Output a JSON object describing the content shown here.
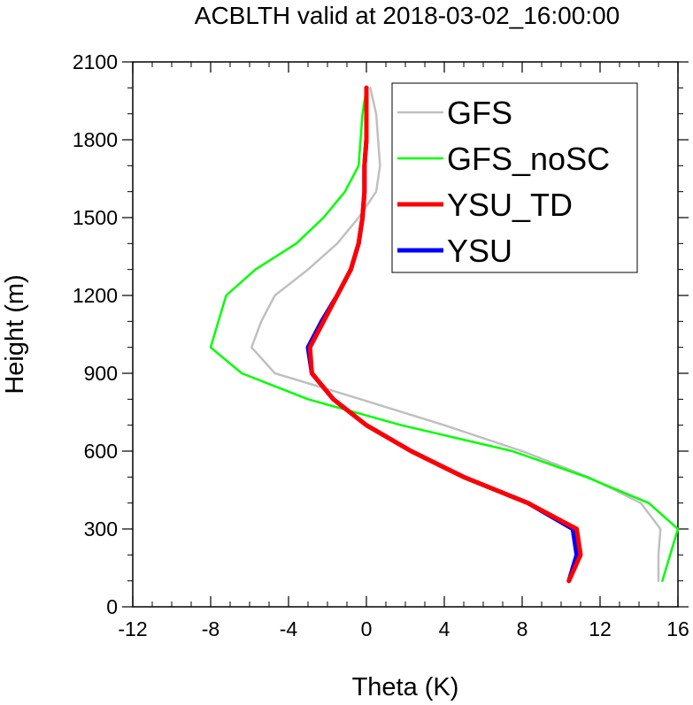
{
  "chart_data": {
    "type": "line",
    "title": "ACBLTH valid at 2018-03-02_16:00:00",
    "xlabel": "Theta (K)",
    "ylabel": "Height (m)",
    "xlim": [
      -12,
      16
    ],
    "ylim": [
      0,
      2100
    ],
    "x_ticks": [
      -12,
      -8,
      -4,
      0,
      4,
      8,
      12,
      16
    ],
    "x_tick_labels": [
      "-12",
      "-8",
      "-4",
      "0",
      "4",
      "8",
      "12",
      "16"
    ],
    "y_ticks": [
      0,
      300,
      600,
      900,
      1200,
      1500,
      1800,
      2100
    ],
    "y_tick_labels": [
      "0",
      "300",
      "600",
      "900",
      "1200",
      "1500",
      "1800",
      "2100"
    ],
    "legend_position": "top-right",
    "series": [
      {
        "name": "GFS",
        "color": "#c0c0c0",
        "line_width": "thin",
        "points": [
          [
            15.0,
            100
          ],
          [
            15.0,
            200
          ],
          [
            15.1,
            300
          ],
          [
            14.1,
            400
          ],
          [
            11.4,
            500
          ],
          [
            8.0,
            600
          ],
          [
            4.0,
            700
          ],
          [
            -0.3,
            800
          ],
          [
            -4.7,
            900
          ],
          [
            -5.9,
            1000
          ],
          [
            -5.4,
            1100
          ],
          [
            -4.7,
            1200
          ],
          [
            -3.0,
            1300
          ],
          [
            -1.5,
            1400
          ],
          [
            -0.4,
            1500
          ],
          [
            0.5,
            1600
          ],
          [
            0.7,
            1700
          ],
          [
            0.6,
            1800
          ],
          [
            0.5,
            1900
          ],
          [
            0.2,
            2000
          ]
        ]
      },
      {
        "name": "GFS_noSC",
        "color": "#00ff00",
        "line_width": "thin",
        "points": [
          [
            15.2,
            100
          ],
          [
            15.6,
            200
          ],
          [
            16.0,
            300
          ],
          [
            14.5,
            400
          ],
          [
            11.3,
            500
          ],
          [
            7.5,
            600
          ],
          [
            1.8,
            700
          ],
          [
            -3.0,
            800
          ],
          [
            -6.4,
            900
          ],
          [
            -8.0,
            1000
          ],
          [
            -7.6,
            1100
          ],
          [
            -7.2,
            1200
          ],
          [
            -5.7,
            1300
          ],
          [
            -3.6,
            1400
          ],
          [
            -2.2,
            1500
          ],
          [
            -1.1,
            1600
          ],
          [
            -0.4,
            1700
          ],
          [
            -0.3,
            1800
          ],
          [
            -0.2,
            1900
          ],
          [
            0.0,
            2000
          ]
        ]
      },
      {
        "name": "YSU_TD",
        "color": "#ff0000",
        "line_width": "thick",
        "points": [
          [
            10.4,
            100
          ],
          [
            11.0,
            200
          ],
          [
            10.8,
            300
          ],
          [
            8.3,
            400
          ],
          [
            5.0,
            500
          ],
          [
            2.3,
            600
          ],
          [
            0.0,
            700
          ],
          [
            -1.7,
            800
          ],
          [
            -2.8,
            900
          ],
          [
            -2.9,
            1000
          ],
          [
            -2.2,
            1100
          ],
          [
            -1.5,
            1200
          ],
          [
            -0.8,
            1300
          ],
          [
            -0.4,
            1400
          ],
          [
            -0.2,
            1500
          ],
          [
            -0.1,
            1600
          ],
          [
            -0.1,
            1700
          ],
          [
            0.0,
            1800
          ],
          [
            0.0,
            1900
          ],
          [
            0.0,
            2000
          ]
        ]
      },
      {
        "name": "YSU",
        "color": "#0000ff",
        "line_width": "thick",
        "points": [
          [
            10.4,
            100
          ],
          [
            10.8,
            200
          ],
          [
            10.6,
            300
          ],
          [
            8.3,
            400
          ],
          [
            5.0,
            500
          ],
          [
            2.3,
            600
          ],
          [
            0.0,
            700
          ],
          [
            -1.7,
            800
          ],
          [
            -2.8,
            900
          ],
          [
            -3.0,
            1000
          ],
          [
            -2.3,
            1100
          ],
          [
            -1.5,
            1200
          ],
          [
            -0.8,
            1300
          ],
          [
            -0.4,
            1400
          ],
          [
            -0.2,
            1500
          ],
          [
            -0.1,
            1600
          ],
          [
            -0.1,
            1700
          ],
          [
            0.0,
            1800
          ],
          [
            0.0,
            1900
          ],
          [
            0.0,
            2000
          ]
        ]
      }
    ]
  }
}
